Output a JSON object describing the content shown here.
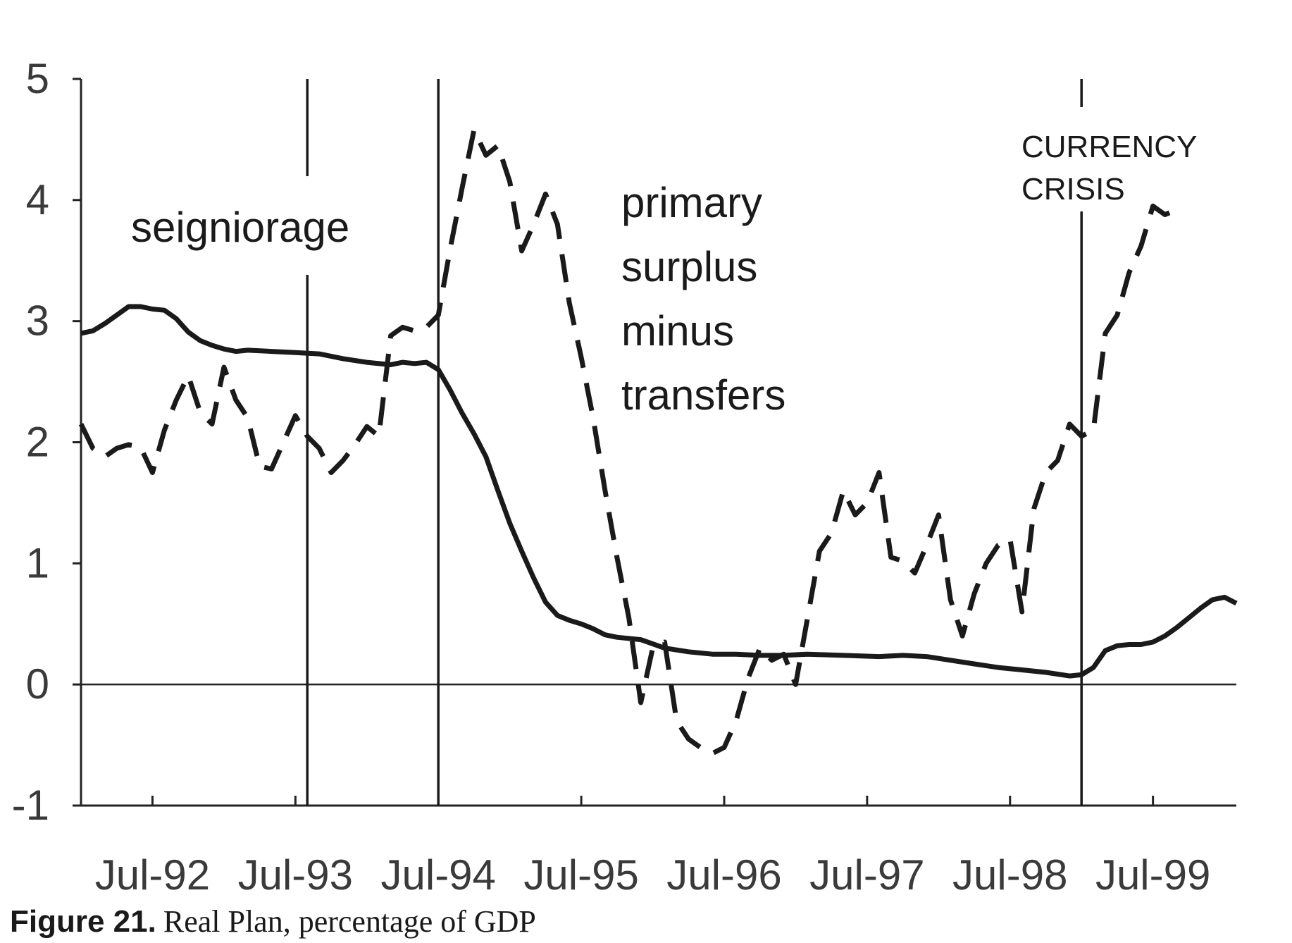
{
  "chart_data": {
    "type": "line",
    "title": "",
    "xlabel": "",
    "ylabel": "",
    "ylim": [
      -1,
      5
    ],
    "xlim": [
      "1992-01",
      "1999-12"
    ],
    "yticks": [
      -1,
      0,
      1,
      2,
      3,
      4,
      5
    ],
    "xtick_labels": [
      {
        "date": "1992-07",
        "label": "Jul-92"
      },
      {
        "date": "1993-07",
        "label": "Jul-93"
      },
      {
        "date": "1994-07",
        "label": "Jul-94"
      },
      {
        "date": "1995-07",
        "label": "Jul-95"
      },
      {
        "date": "1996-07",
        "label": "Jul-96"
      },
      {
        "date": "1997-07",
        "label": "Jul-97"
      },
      {
        "date": "1998-07",
        "label": "Jul-98"
      },
      {
        "date": "1999-07",
        "label": "Jul-99"
      }
    ],
    "grid": false,
    "vertical_markers": [
      "1993-08",
      "1994-07",
      "1999-01"
    ],
    "annotations": [
      {
        "text": "seigniorage",
        "series": "seigniorage"
      },
      {
        "text": "primary",
        "series": "primary surplus minus transfers"
      },
      {
        "text": "surplus",
        "series": "primary surplus minus transfers"
      },
      {
        "text": "minus",
        "series": "primary surplus minus transfers"
      },
      {
        "text": "transfers",
        "series": "primary surplus minus transfers"
      },
      {
        "text": "CURRENCY"
      },
      {
        "text": "CRISIS"
      }
    ],
    "series": [
      {
        "name": "seigniorage",
        "style": "solid",
        "color": "#1a1a1a",
        "points": [
          [
            "1992-01",
            2.9
          ],
          [
            "1992-02",
            2.92
          ],
          [
            "1992-03",
            2.98
          ],
          [
            "1992-04",
            3.05
          ],
          [
            "1992-05",
            3.12
          ],
          [
            "1992-06",
            3.12
          ],
          [
            "1992-07",
            3.1
          ],
          [
            "1992-08",
            3.09
          ],
          [
            "1992-09",
            3.02
          ],
          [
            "1992-10",
            2.91
          ],
          [
            "1992-11",
            2.84
          ],
          [
            "1992-12",
            2.8
          ],
          [
            "1993-01",
            2.77
          ],
          [
            "1993-02",
            2.75
          ],
          [
            "1993-03",
            2.76
          ],
          [
            "1993-05",
            2.75
          ],
          [
            "1993-07",
            2.74
          ],
          [
            "1993-09",
            2.73
          ],
          [
            "1993-11",
            2.69
          ],
          [
            "1994-01",
            2.66
          ],
          [
            "1994-03",
            2.64
          ],
          [
            "1994-04",
            2.66
          ],
          [
            "1994-05",
            2.65
          ],
          [
            "1994-06",
            2.66
          ],
          [
            "1994-07",
            2.6
          ],
          [
            "1994-08",
            2.43
          ],
          [
            "1994-09",
            2.24
          ],
          [
            "1994-10",
            2.07
          ],
          [
            "1994-11",
            1.88
          ],
          [
            "1994-12",
            1.6
          ],
          [
            "1995-01",
            1.33
          ],
          [
            "1995-02",
            1.1
          ],
          [
            "1995-03",
            0.88
          ],
          [
            "1995-04",
            0.68
          ],
          [
            "1995-05",
            0.57
          ],
          [
            "1995-06",
            0.53
          ],
          [
            "1995-07",
            0.5
          ],
          [
            "1995-08",
            0.46
          ],
          [
            "1995-09",
            0.41
          ],
          [
            "1995-10",
            0.39
          ],
          [
            "1995-11",
            0.38
          ],
          [
            "1995-12",
            0.37
          ],
          [
            "1996-02",
            0.3
          ],
          [
            "1996-04",
            0.27
          ],
          [
            "1996-06",
            0.25
          ],
          [
            "1996-08",
            0.25
          ],
          [
            "1996-10",
            0.24
          ],
          [
            "1996-12",
            0.24
          ],
          [
            "1997-02",
            0.25
          ],
          [
            "1997-05",
            0.24
          ],
          [
            "1997-08",
            0.23
          ],
          [
            "1997-10",
            0.24
          ],
          [
            "1997-12",
            0.23
          ],
          [
            "1998-02",
            0.2
          ],
          [
            "1998-04",
            0.17
          ],
          [
            "1998-06",
            0.14
          ],
          [
            "1998-08",
            0.12
          ],
          [
            "1998-10",
            0.1
          ],
          [
            "1998-12",
            0.07
          ],
          [
            "1999-01",
            0.08
          ],
          [
            "1999-02",
            0.14
          ],
          [
            "1999-03",
            0.28
          ],
          [
            "1999-04",
            0.32
          ],
          [
            "1999-05",
            0.33
          ],
          [
            "1999-06",
            0.33
          ],
          [
            "1999-07",
            0.35
          ],
          [
            "1999-08",
            0.4
          ],
          [
            "1999-09",
            0.47
          ],
          [
            "1999-10",
            0.55
          ],
          [
            "1999-11",
            0.63
          ],
          [
            "1999-12",
            0.7
          ],
          [
            "2000-01",
            0.72
          ],
          [
            "2000-02",
            0.67
          ]
        ]
      },
      {
        "name": "primary surplus minus transfers",
        "style": "dashed",
        "color": "#1a1a1a",
        "points": [
          [
            "1992-01",
            2.15
          ],
          [
            "1992-02",
            1.95
          ],
          [
            "1992-03",
            1.88
          ],
          [
            "1992-04",
            1.95
          ],
          [
            "1992-05",
            1.98
          ],
          [
            "1992-06",
            1.96
          ],
          [
            "1992-07",
            1.75
          ],
          [
            "1992-08",
            2.1
          ],
          [
            "1992-09",
            2.35
          ],
          [
            "1992-10",
            2.55
          ],
          [
            "1992-11",
            2.25
          ],
          [
            "1992-12",
            2.15
          ],
          [
            "1993-01",
            2.62
          ],
          [
            "1993-02",
            2.35
          ],
          [
            "1993-03",
            2.2
          ],
          [
            "1993-04",
            1.8
          ],
          [
            "1993-05",
            1.78
          ],
          [
            "1993-06",
            2.0
          ],
          [
            "1993-07",
            2.22
          ],
          [
            "1993-08",
            2.05
          ],
          [
            "1993-09",
            1.95
          ],
          [
            "1993-10",
            1.75
          ],
          [
            "1993-11",
            1.85
          ],
          [
            "1993-12",
            1.98
          ],
          [
            "1994-01",
            2.13
          ],
          [
            "1994-02",
            2.05
          ],
          [
            "1994-03",
            2.88
          ],
          [
            "1994-04",
            2.95
          ],
          [
            "1994-05",
            2.92
          ],
          [
            "1994-06",
            2.95
          ],
          [
            "1994-07",
            3.05
          ],
          [
            "1994-08",
            3.6
          ],
          [
            "1994-09",
            4.1
          ],
          [
            "1994-10",
            4.58
          ],
          [
            "1994-11",
            4.37
          ],
          [
            "1994-12",
            4.45
          ],
          [
            "1995-01",
            4.15
          ],
          [
            "1995-02",
            3.58
          ],
          [
            "1995-03",
            3.8
          ],
          [
            "1995-04",
            4.05
          ],
          [
            "1995-05",
            3.8
          ],
          [
            "1995-06",
            3.15
          ],
          [
            "1995-07",
            2.7
          ],
          [
            "1995-08",
            2.2
          ],
          [
            "1995-09",
            1.6
          ],
          [
            "1995-10",
            1.05
          ],
          [
            "1995-11",
            0.55
          ],
          [
            "1995-12",
            -0.15
          ],
          [
            "1996-01",
            0.3
          ],
          [
            "1996-02",
            0.35
          ],
          [
            "1996-03",
            -0.3
          ],
          [
            "1996-04",
            -0.45
          ],
          [
            "1996-05",
            -0.52
          ],
          [
            "1996-06",
            -0.57
          ],
          [
            "1996-07",
            -0.52
          ],
          [
            "1996-08",
            -0.3
          ],
          [
            "1996-09",
            0.05
          ],
          [
            "1996-10",
            0.3
          ],
          [
            "1996-11",
            0.2
          ],
          [
            "1996-12",
            0.25
          ],
          [
            "1997-01",
            0.0
          ],
          [
            "1997-02",
            0.55
          ],
          [
            "1997-03",
            1.1
          ],
          [
            "1997-04",
            1.25
          ],
          [
            "1997-05",
            1.6
          ],
          [
            "1997-06",
            1.4
          ],
          [
            "1997-07",
            1.5
          ],
          [
            "1997-08",
            1.75
          ],
          [
            "1997-09",
            1.05
          ],
          [
            "1997-10",
            1.02
          ],
          [
            "1997-11",
            0.92
          ],
          [
            "1997-12",
            1.15
          ],
          [
            "1998-01",
            1.4
          ],
          [
            "1998-02",
            0.7
          ],
          [
            "1998-03",
            0.4
          ],
          [
            "1998-04",
            0.75
          ],
          [
            "1998-05",
            1.0
          ],
          [
            "1998-06",
            1.15
          ],
          [
            "1998-07",
            1.2
          ],
          [
            "1998-08",
            0.6
          ],
          [
            "1998-09",
            1.45
          ],
          [
            "1998-10",
            1.75
          ],
          [
            "1998-11",
            1.85
          ],
          [
            "1998-12",
            2.15
          ],
          [
            "1999-01",
            2.05
          ],
          [
            "1999-02",
            2.1
          ],
          [
            "1999-03",
            2.9
          ],
          [
            "1999-04",
            3.05
          ],
          [
            "1999-05",
            3.4
          ],
          [
            "1999-06",
            3.62
          ],
          [
            "1999-07",
            3.95
          ],
          [
            "1999-08",
            3.88
          ],
          [
            "1999-09",
            3.92
          ]
        ]
      }
    ]
  },
  "caption": {
    "label": "Figure 21.",
    "text": "Real Plan, percentage of GDP"
  }
}
